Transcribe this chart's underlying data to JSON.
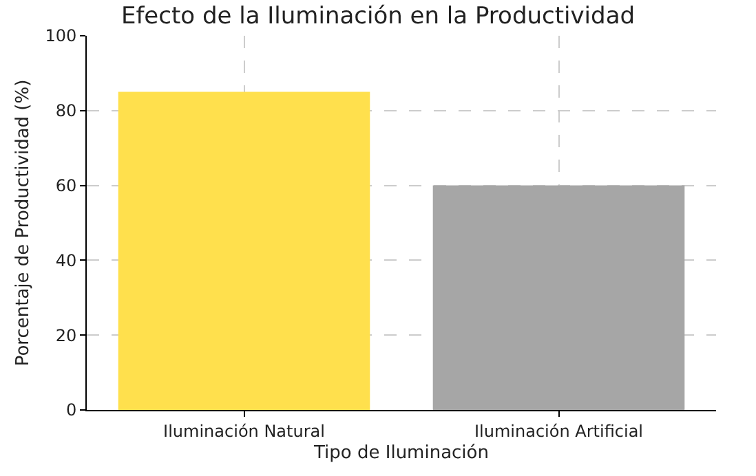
{
  "chart_data": {
    "type": "bar",
    "title": "Efecto de la Iluminación en la Productividad",
    "xlabel": "Tipo de Iluminación",
    "ylabel": "Porcentaje de Productividad (%)",
    "categories": [
      "Iluminación Natural",
      "Iluminación Artificial"
    ],
    "values": [
      85,
      60
    ],
    "colors": [
      "#ffe04d",
      "#a6a6a6"
    ],
    "ylim": [
      0,
      100
    ],
    "yticks": [
      0,
      20,
      40,
      60,
      80,
      100
    ],
    "grid": true
  }
}
